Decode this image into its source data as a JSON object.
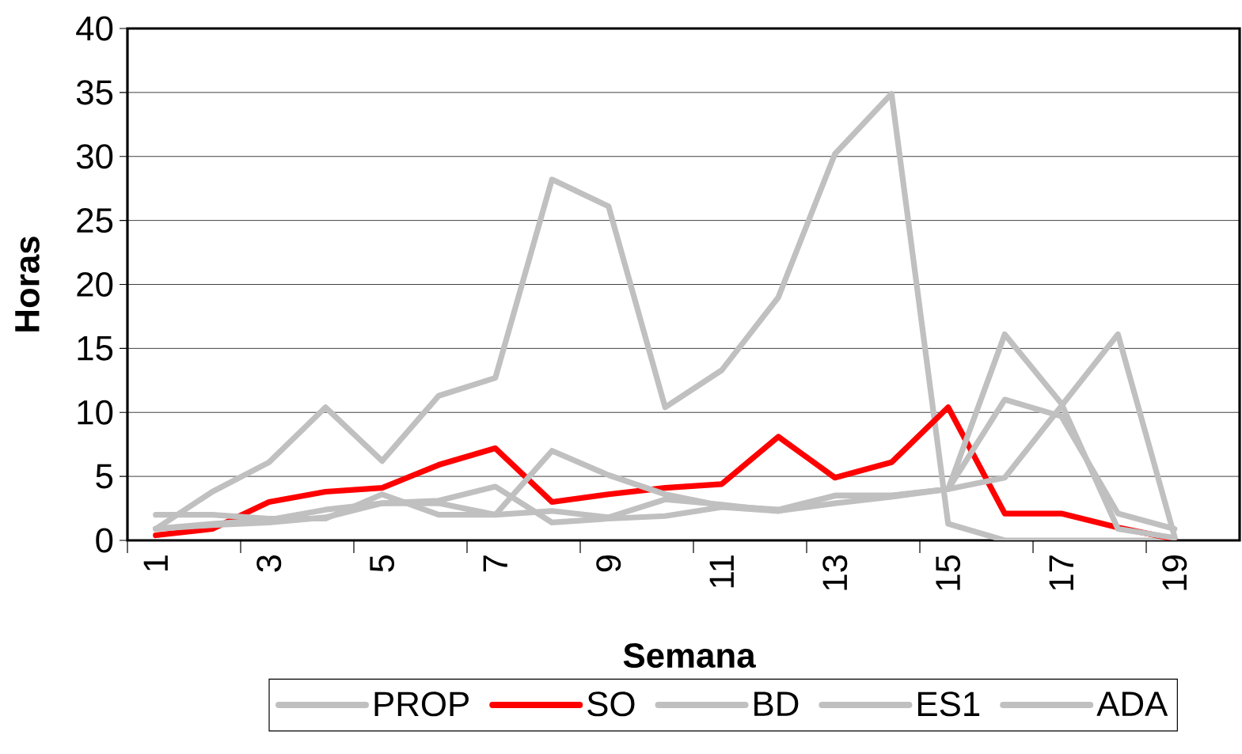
{
  "chart_data": {
    "type": "line",
    "xlabel": "Semana",
    "ylabel": "Horas",
    "categories": [
      "1",
      null,
      "3",
      null,
      "5",
      null,
      "7",
      null,
      "9",
      null,
      "11",
      null,
      "13",
      null,
      "15",
      null,
      "17",
      null,
      "19"
    ],
    "ylim": [
      0,
      40
    ],
    "yticks": [
      0,
      5,
      10,
      15,
      20,
      25,
      30,
      35,
      40
    ],
    "grid": "y",
    "legend": "bottom",
    "series": [
      {
        "name": "PROP",
        "color": "#c0c0c0",
        "values": [
          0.9,
          3.8,
          6.1,
          10.4,
          6.2,
          11.3,
          12.7,
          28.2,
          26.1,
          10.4,
          13.3,
          19,
          30.2,
          34.9,
          1.3,
          0,
          0,
          0,
          0
        ]
      },
      {
        "name": "SO",
        "color": "#ff0000",
        "values": [
          0.4,
          0.9,
          3,
          3.8,
          4.1,
          5.9,
          7.2,
          3,
          3.6,
          4.1,
          4.4,
          8.1,
          4.9,
          6.1,
          10.4,
          2.1,
          2.1,
          1,
          0.1
        ]
      },
      {
        "name": "BD",
        "color": "#c0c0c0",
        "values": [
          2,
          2,
          1.7,
          1.7,
          3.6,
          2,
          2,
          7,
          5.1,
          3.6,
          2.7,
          2.4,
          3.5,
          3.5,
          4,
          11,
          9.7,
          2.1,
          0.9
        ]
      },
      {
        "name": "ES1",
        "color": "#c0c0c0",
        "values": [
          0.9,
          1.3,
          1.6,
          2.4,
          2.9,
          3.1,
          4.2,
          1.4,
          1.7,
          1.9,
          2.6,
          2.3,
          2.9,
          3.4,
          4,
          16.1,
          10.7,
          0.9,
          0.2
        ]
      },
      {
        "name": "ADA",
        "color": "#c0c0c0",
        "values": [
          0.9,
          1.2,
          1.4,
          1.8,
          2.9,
          2.9,
          2,
          2.3,
          1.8,
          3.2,
          2.8,
          2.3,
          3.5,
          3.5,
          4,
          4.9,
          10.5,
          16.1,
          0.3
        ]
      }
    ]
  }
}
